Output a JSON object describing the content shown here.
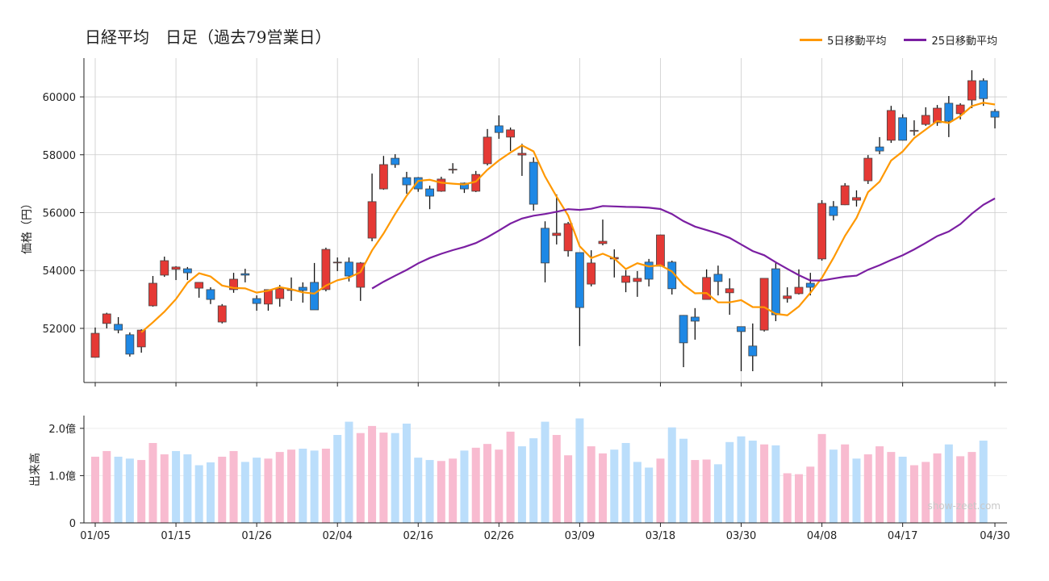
{
  "title": "日経平均　日足（過去79営業日）",
  "legend": [
    {
      "label": "5日移動平均",
      "color": "#ff9800"
    },
    {
      "label": "25日移動平均",
      "color": "#7b1fa2"
    }
  ],
  "watermark": "show-zeet.com",
  "colors": {
    "up": "#e53935",
    "down": "#1e88e5",
    "vol_up": "#f8bbd0",
    "vol_down": "#bbdefb"
  },
  "chart_data": [
    {
      "type": "candlestick",
      "ylabel": "価格（円）",
      "ylim": [
        50130,
        61340
      ],
      "yticks": [
        52000,
        54000,
        56000,
        58000,
        60000
      ],
      "grid": true,
      "legend_position": "top-right",
      "moving_averages": [
        5,
        25
      ],
      "xtick_labels": [
        {
          "index": 0,
          "label": "01/05"
        },
        {
          "index": 7,
          "label": "01/15"
        },
        {
          "index": 14,
          "label": "01/26"
        },
        {
          "index": 21,
          "label": "02/04"
        },
        {
          "index": 28,
          "label": "02/16"
        },
        {
          "index": 35,
          "label": "02/26"
        },
        {
          "index": 42,
          "label": "03/09"
        },
        {
          "index": 49,
          "label": "03/18"
        },
        {
          "index": 56,
          "label": "03/30"
        },
        {
          "index": 63,
          "label": "04/08"
        },
        {
          "index": 70,
          "label": "04/17"
        },
        {
          "index": 78,
          "label": "04/30"
        }
      ],
      "ohlc": [
        [
          51000,
          52030,
          50990,
          51830
        ],
        [
          52170,
          52540,
          52000,
          52500
        ],
        [
          52140,
          52390,
          51830,
          51940
        ],
        [
          51780,
          51860,
          51025,
          51110
        ],
        [
          51360,
          51970,
          51160,
          51940
        ],
        [
          52780,
          53810,
          52750,
          53560
        ],
        [
          53840,
          54480,
          53780,
          54340
        ],
        [
          54040,
          54150,
          53670,
          54120
        ],
        [
          54060,
          54120,
          53670,
          53920
        ],
        [
          53390,
          53600,
          53060,
          53590
        ],
        [
          53340,
          53420,
          52840,
          53000
        ],
        [
          52220,
          52840,
          52170,
          52780
        ],
        [
          53340,
          53920,
          53230,
          53700
        ],
        [
          53890,
          54060,
          53590,
          53840
        ],
        [
          53030,
          53140,
          52610,
          52860
        ],
        [
          52840,
          53350,
          52610,
          53340
        ],
        [
          53030,
          53500,
          52750,
          53370
        ],
        [
          53310,
          53760,
          52950,
          53340
        ],
        [
          53420,
          53590,
          52890,
          53310
        ],
        [
          53590,
          54260,
          52640,
          52640
        ],
        [
          53340,
          54790,
          53280,
          54730
        ],
        [
          54280,
          54450,
          53980,
          54290
        ],
        [
          54290,
          54450,
          53620,
          53810
        ],
        [
          53420,
          54290,
          52950,
          54260
        ],
        [
          55120,
          57350,
          55010,
          56380
        ],
        [
          56820,
          57960,
          56790,
          57660
        ],
        [
          57880,
          58020,
          57550,
          57660
        ],
        [
          57210,
          57410,
          56650,
          56960
        ],
        [
          57210,
          57230,
          56720,
          56820
        ],
        [
          56820,
          56930,
          56120,
          56570
        ],
        [
          56740,
          57240,
          56720,
          57160
        ],
        [
          57480,
          57710,
          57350,
          57500
        ],
        [
          57020,
          57040,
          56680,
          56820
        ],
        [
          56740,
          57440,
          56710,
          57320
        ],
        [
          57690,
          58890,
          57630,
          58610
        ],
        [
          59000,
          59360,
          58550,
          58770
        ],
        [
          58610,
          58940,
          58130,
          58860
        ],
        [
          57990,
          58380,
          57270,
          58050
        ],
        [
          57740,
          57910,
          56070,
          56290
        ],
        [
          55460,
          55700,
          53590,
          54260
        ],
        [
          55210,
          56630,
          54900,
          55290
        ],
        [
          54680,
          55680,
          54480,
          55620
        ],
        [
          54620,
          54620,
          51390,
          52720
        ],
        [
          53530,
          54700,
          53450,
          54260
        ],
        [
          54930,
          55760,
          54870,
          55010
        ],
        [
          54400,
          54730,
          53760,
          54450
        ],
        [
          53590,
          54010,
          53250,
          53810
        ],
        [
          53620,
          53980,
          53090,
          53730
        ],
        [
          54290,
          54400,
          53450,
          53700
        ],
        [
          54150,
          55240,
          54140,
          55230
        ],
        [
          54290,
          54340,
          53170,
          53370
        ],
        [
          52450,
          52460,
          50660,
          51500
        ],
        [
          52390,
          52700,
          51610,
          52250
        ],
        [
          53000,
          54040,
          53000,
          53760
        ],
        [
          53870,
          54170,
          53140,
          53620
        ],
        [
          53230,
          53730,
          52470,
          53370
        ],
        [
          52060,
          52060,
          50520,
          51890
        ],
        [
          51390,
          52170,
          50520,
          51050
        ],
        [
          51940,
          53740,
          51890,
          53730
        ],
        [
          54060,
          54260,
          52250,
          52470
        ],
        [
          53030,
          53420,
          52890,
          53120
        ],
        [
          53200,
          54040,
          53170,
          53420
        ],
        [
          53560,
          53920,
          53140,
          53420
        ],
        [
          54400,
          56430,
          54340,
          56320
        ],
        [
          56210,
          56400,
          55730,
          55900
        ],
        [
          56270,
          57020,
          56260,
          56930
        ],
        [
          56430,
          56770,
          56210,
          56520
        ],
        [
          57100,
          57990,
          56990,
          57880
        ],
        [
          58270,
          58610,
          58020,
          58130
        ],
        [
          58500,
          59690,
          58410,
          59530
        ],
        [
          59280,
          59400,
          58490,
          58500
        ],
        [
          58820,
          59190,
          58660,
          58840
        ],
        [
          59050,
          59640,
          59000,
          59360
        ],
        [
          59110,
          59720,
          59000,
          59610
        ],
        [
          59780,
          60030,
          58610,
          59160
        ],
        [
          59420,
          59780,
          59220,
          59720
        ],
        [
          59890,
          60920,
          59610,
          60560
        ],
        [
          60560,
          60640,
          59690,
          59940
        ],
        [
          59500,
          59580,
          58910,
          59300
        ]
      ]
    },
    {
      "type": "bar",
      "ylabel": "出来高",
      "ylim": [
        0,
        2.27
      ],
      "yticks": [
        {
          "value": 0,
          "label": "0"
        },
        {
          "value": 1.0,
          "label": "1.0億"
        },
        {
          "value": 2.0,
          "label": "2.0億"
        }
      ],
      "unit": "億",
      "values": [
        1.4,
        1.52,
        1.4,
        1.36,
        1.33,
        1.69,
        1.45,
        1.52,
        1.45,
        1.22,
        1.28,
        1.4,
        1.52,
        1.29,
        1.38,
        1.36,
        1.5,
        1.55,
        1.57,
        1.53,
        1.57,
        1.86,
        2.14,
        1.9,
        2.05,
        1.91,
        1.9,
        2.1,
        1.38,
        1.33,
        1.31,
        1.36,
        1.53,
        1.59,
        1.67,
        1.55,
        1.93,
        1.62,
        1.79,
        2.14,
        1.86,
        1.43,
        2.21,
        1.62,
        1.47,
        1.55,
        1.69,
        1.29,
        1.17,
        1.36,
        2.02,
        1.78,
        1.33,
        1.34,
        1.24,
        1.71,
        1.83,
        1.74,
        1.66,
        1.64,
        1.05,
        1.03,
        1.19,
        1.88,
        1.55,
        1.66,
        1.36,
        1.45,
        1.62,
        1.5,
        1.4,
        1.22,
        1.29,
        1.47,
        1.66,
        1.41,
        1.5,
        1.74,
        null
      ],
      "up": [
        1,
        1,
        0,
        0,
        1,
        1,
        1,
        0,
        0,
        0,
        0,
        1,
        1,
        0,
        0,
        1,
        1,
        1,
        0,
        0,
        1,
        0,
        0,
        1,
        1,
        1,
        0,
        0,
        0,
        0,
        1,
        1,
        0,
        1,
        1,
        1,
        1,
        0,
        0,
        0,
        1,
        1,
        0,
        1,
        1,
        0,
        0,
        0,
        0,
        1,
        0,
        0,
        1,
        1,
        0,
        0,
        0,
        0,
        1,
        0,
        1,
        1,
        1,
        1,
        0,
        1,
        0,
        1,
        1,
        1,
        0,
        1,
        1,
        1,
        0,
        1,
        1,
        0,
        0
      ]
    }
  ]
}
